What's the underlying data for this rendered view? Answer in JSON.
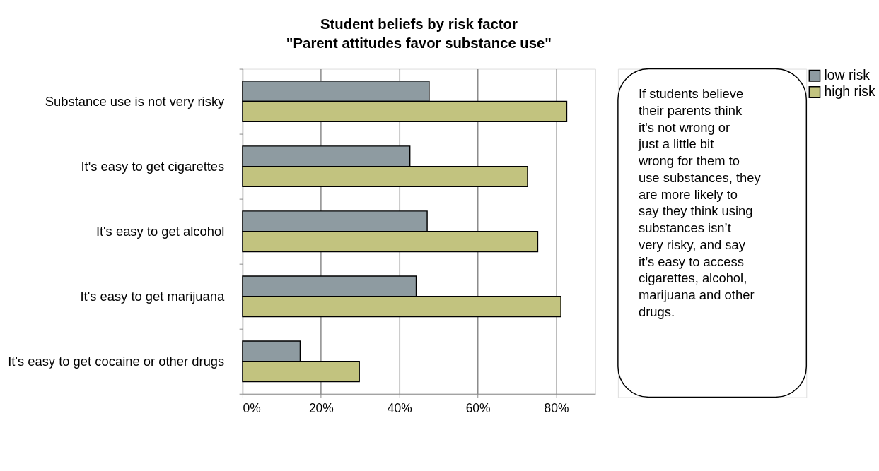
{
  "chart_data": {
    "type": "bar",
    "orientation": "horizontal",
    "title": "Student beliefs by risk factor",
    "subtitle": "\"Parent attitudes favor substance use\"",
    "categories": [
      "Substance use is not very risky",
      "It's easy to get cigarettes",
      "It's easy to get alcohol",
      "It's easy to get marijuana",
      "It's easy to get cocaine or other drugs"
    ],
    "series": [
      {
        "name": "low risk",
        "color": "#8e9ba1",
        "values": [
          47.6,
          42.7,
          47.1,
          44.3,
          14.7
        ]
      },
      {
        "name": "high risk",
        "color": "#c2c37f",
        "values": [
          82.7,
          72.7,
          75.3,
          81.2,
          29.8
        ]
      }
    ],
    "xlim": [
      0,
      90
    ],
    "xticks": [
      {
        "value": 0,
        "label": "0%"
      },
      {
        "value": 20,
        "label": "20%"
      },
      {
        "value": 40,
        "label": "40%"
      },
      {
        "value": 60,
        "label": "60%"
      },
      {
        "value": 80,
        "label": "80%"
      }
    ],
    "grid": "x",
    "legend": "right",
    "annotations": [
      "If students believe their parents think it's not wrong or just a little bit wrong for them to use substances, they are more likely to say they think using substances isn’t very risky, and say it’s easy to access cigarettes, alcohol, marijuana and other drugs."
    ]
  }
}
